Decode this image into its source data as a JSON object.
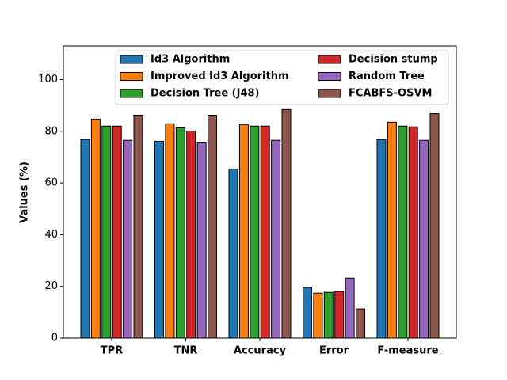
{
  "chart_data": {
    "type": "bar",
    "ylabel": "Values (%)",
    "categories": [
      "TPR",
      "TNR",
      "Accuracy",
      "Error",
      "F-measure"
    ],
    "series": [
      {
        "name": "Id3 Algorithm",
        "color": "#1f77b4",
        "values": [
          76.8,
          76.1,
          65.4,
          19.6,
          76.8
        ]
      },
      {
        "name": "Improved Id3 Algorithm",
        "color": "#ff7f0e",
        "values": [
          84.7,
          82.9,
          82.6,
          17.4,
          83.5
        ]
      },
      {
        "name": "Decision Tree (J48)",
        "color": "#2ca02c",
        "values": [
          82.0,
          81.3,
          82.0,
          17.7,
          82.0
        ]
      },
      {
        "name": "Decision stump",
        "color": "#d62728",
        "values": [
          82.0,
          80.1,
          82.0,
          18.0,
          81.7
        ]
      },
      {
        "name": "Random Tree",
        "color": "#9467bd",
        "values": [
          76.5,
          75.5,
          76.5,
          23.2,
          76.5
        ]
      },
      {
        "name": "FCABFS-OSVM",
        "color": "#8c564b",
        "values": [
          86.2,
          86.2,
          88.4,
          11.3,
          86.8
        ]
      }
    ],
    "ylim": [
      0,
      113
    ],
    "yticks": [
      0,
      20,
      40,
      60,
      80,
      100
    ],
    "legend": "upper center",
    "legend_columns": 2
  }
}
